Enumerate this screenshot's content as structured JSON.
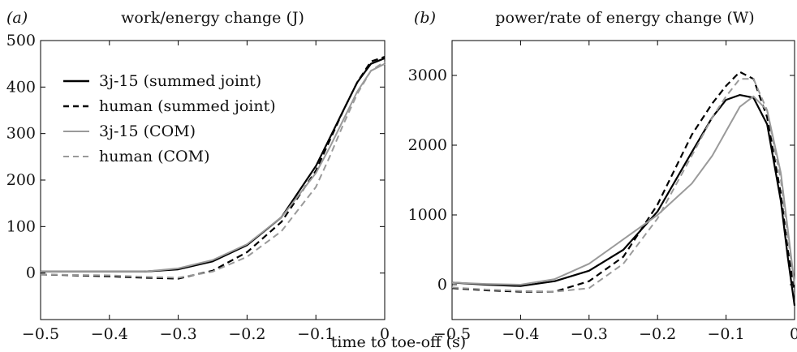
{
  "chart_data": [
    {
      "type": "line",
      "panel_label": "(a)",
      "title": "work/energy change (J)",
      "xlim": [
        -0.5,
        0
      ],
      "ylim": [
        -100,
        500
      ],
      "xticks": [
        -0.5,
        -0.4,
        -0.3,
        -0.2,
        -0.1,
        0
      ],
      "xtick_labels": [
        "−0.5",
        "−0.4",
        "−0.3",
        "−0.2",
        "−0.1",
        "0"
      ],
      "yticks": [
        0,
        100,
        200,
        300,
        400,
        500
      ],
      "ytick_labels": [
        "0",
        "100",
        "200",
        "300",
        "400",
        "500"
      ],
      "legend": {
        "placement": "upper-left"
      },
      "series": [
        {
          "name": "3j-15 (summed joint)",
          "color": "#000000",
          "dash": "solid",
          "x": [
            -0.5,
            -0.45,
            -0.4,
            -0.35,
            -0.3,
            -0.25,
            -0.2,
            -0.15,
            -0.1,
            -0.08,
            -0.06,
            -0.04,
            -0.02,
            0
          ],
          "y": [
            3,
            3,
            3,
            3,
            8,
            25,
            60,
            120,
            230,
            290,
            350,
            410,
            450,
            462
          ]
        },
        {
          "name": "human (summed joint)",
          "color": "#000000",
          "dash": "dashed",
          "x": [
            -0.5,
            -0.45,
            -0.4,
            -0.35,
            -0.3,
            -0.25,
            -0.2,
            -0.15,
            -0.1,
            -0.08,
            -0.06,
            -0.04,
            -0.02,
            0
          ],
          "y": [
            -3,
            -5,
            -7,
            -10,
            -12,
            5,
            45,
            110,
            220,
            285,
            350,
            410,
            455,
            465
          ]
        },
        {
          "name": "3j-15 (COM)",
          "color": "#9a9a9a",
          "dash": "solid",
          "x": [
            -0.5,
            -0.45,
            -0.4,
            -0.35,
            -0.3,
            -0.25,
            -0.2,
            -0.15,
            -0.1,
            -0.08,
            -0.06,
            -0.04,
            -0.02,
            0
          ],
          "y": [
            3,
            3,
            3,
            3,
            10,
            28,
            62,
            120,
            215,
            270,
            330,
            390,
            435,
            450
          ]
        },
        {
          "name": "human (COM)",
          "color": "#9a9a9a",
          "dash": "dashed",
          "x": [
            -0.5,
            -0.45,
            -0.4,
            -0.35,
            -0.3,
            -0.25,
            -0.2,
            -0.15,
            -0.1,
            -0.08,
            -0.06,
            -0.04,
            -0.02,
            0
          ],
          "y": [
            -3,
            -4,
            -5,
            -8,
            -10,
            3,
            35,
            90,
            185,
            250,
            320,
            385,
            435,
            455
          ]
        }
      ]
    },
    {
      "type": "line",
      "panel_label": "(b)",
      "title": "power/rate of energy change (W)",
      "xlim": [
        -0.5,
        0
      ],
      "ylim": [
        -500,
        3500
      ],
      "xticks": [
        -0.5,
        -0.4,
        -0.3,
        -0.2,
        -0.1,
        0
      ],
      "xtick_labels": [
        "−0.5",
        "−0.4",
        "−0.3",
        "−0.2",
        "−0.1",
        "0"
      ],
      "yticks": [
        0,
        1000,
        2000,
        3000
      ],
      "ytick_labels": [
        "0",
        "1000",
        "2000",
        "3000"
      ],
      "series": [
        {
          "name": "3j-15 (summed joint)",
          "color": "#000000",
          "dash": "solid",
          "x": [
            -0.5,
            -0.45,
            -0.4,
            -0.35,
            -0.3,
            -0.25,
            -0.2,
            -0.15,
            -0.12,
            -0.1,
            -0.08,
            -0.06,
            -0.04,
            -0.02,
            -0.01,
            0
          ],
          "y": [
            30,
            0,
            -20,
            50,
            200,
            500,
            1050,
            1900,
            2400,
            2650,
            2720,
            2680,
            2300,
            1200,
            400,
            -300
          ]
        },
        {
          "name": "human (summed joint)",
          "color": "#000000",
          "dash": "dashed",
          "x": [
            -0.5,
            -0.45,
            -0.4,
            -0.35,
            -0.3,
            -0.25,
            -0.2,
            -0.15,
            -0.12,
            -0.1,
            -0.08,
            -0.06,
            -0.04,
            -0.02,
            -0.01,
            0
          ],
          "y": [
            -50,
            -80,
            -100,
            -100,
            50,
            400,
            1150,
            2150,
            2600,
            2850,
            3050,
            2950,
            2400,
            1300,
            500,
            -100
          ]
        },
        {
          "name": "3j-15 (COM)",
          "color": "#9a9a9a",
          "dash": "solid",
          "x": [
            -0.5,
            -0.45,
            -0.4,
            -0.35,
            -0.3,
            -0.25,
            -0.2,
            -0.15,
            -0.12,
            -0.1,
            -0.08,
            -0.06,
            -0.04,
            -0.02,
            -0.01,
            0
          ],
          "y": [
            30,
            10,
            0,
            80,
            300,
            650,
            1000,
            1450,
            1850,
            2200,
            2550,
            2700,
            2500,
            1600,
            800,
            0
          ]
        },
        {
          "name": "human (COM)",
          "color": "#9a9a9a",
          "dash": "dashed",
          "x": [
            -0.5,
            -0.45,
            -0.4,
            -0.35,
            -0.3,
            -0.25,
            -0.2,
            -0.15,
            -0.12,
            -0.1,
            -0.08,
            -0.06,
            -0.04,
            -0.02,
            -0.01,
            0
          ],
          "y": [
            -40,
            -70,
            -90,
            -100,
            -50,
            300,
            950,
            1850,
            2400,
            2700,
            2950,
            2950,
            2500,
            1500,
            700,
            0
          ]
        }
      ]
    }
  ],
  "shared_xlabel": "time to toe-off (s)"
}
